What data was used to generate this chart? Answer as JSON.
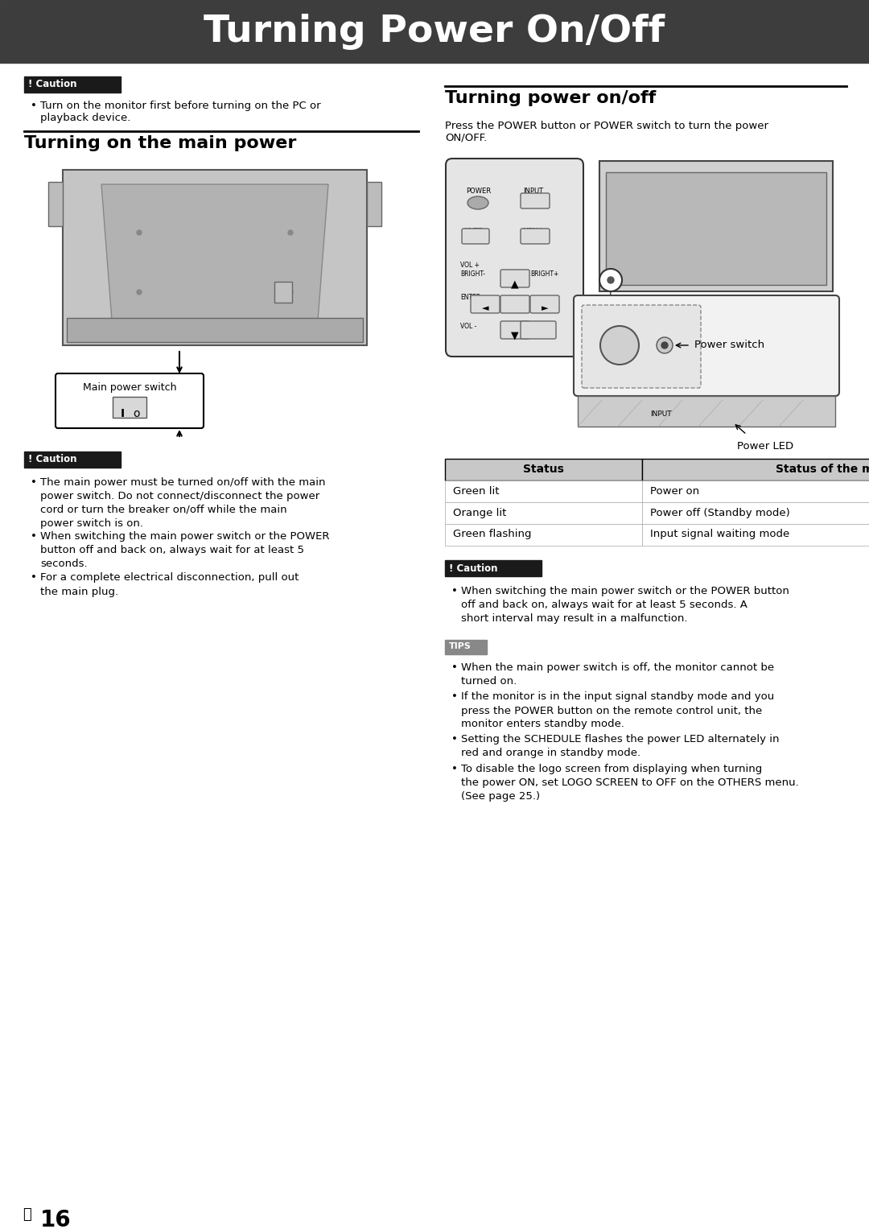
{
  "title": "Turning Power On/Off",
  "title_bg": "#3d3d3d",
  "title_color": "#ffffff",
  "page_bg": "#ffffff",
  "section1_title": "Turning on the main power",
  "section2_title": "Turning power on/off",
  "caution_label": "! Caution",
  "caution_bg": "#1a1a1a",
  "caution_color": "#ffffff",
  "tips_label": "TIPS",
  "tips_bg": "#888888",
  "tips_color": "#ffffff",
  "caution1_text": "Turn on the monitor first before turning on the PC or\nplayback device.",
  "section2_desc": "Press the POWER button or POWER switch to turn the power\nON/OFF.",
  "caution2_bullets": [
    "The main power must be turned on/off with the main power switch. Do not connect/disconnect the power cord or turn the breaker on/off while the main power switch is on.",
    "When switching the main power switch or the POWER button off and back on, always wait for at least 5 seconds.",
    "For a complete electrical disconnection, pull out the main plug."
  ],
  "caution3_bullets": [
    "When switching the main power switch or the POWER button off and back on, always wait for at least 5 seconds. A short interval may result in a malfunction."
  ],
  "tips_bullets": [
    "When the main power switch is off, the monitor cannot be turned on.",
    "If the monitor is in the input signal standby mode and you press the POWER button on the remote control unit, the monitor enters standby mode.",
    "Setting the SCHEDULE flashes the power LED alternately in red and orange in standby mode.",
    "To disable the logo screen from displaying when turning the power ON, set LOGO SCREEN to OFF on the OTHERS menu. (See page 25.)"
  ],
  "table_headers": [
    "Status",
    "Status of the monitor"
  ],
  "table_rows": [
    [
      "Green lit",
      "Power on"
    ],
    [
      "Orange lit",
      "Power off (Standby mode)"
    ],
    [
      "Green flashing",
      "Input signal waiting mode"
    ]
  ],
  "power_switch_label": "Power switch",
  "power_led_label": "Power LED",
  "main_power_switch_label": "Main power switch",
  "page_number": "16"
}
